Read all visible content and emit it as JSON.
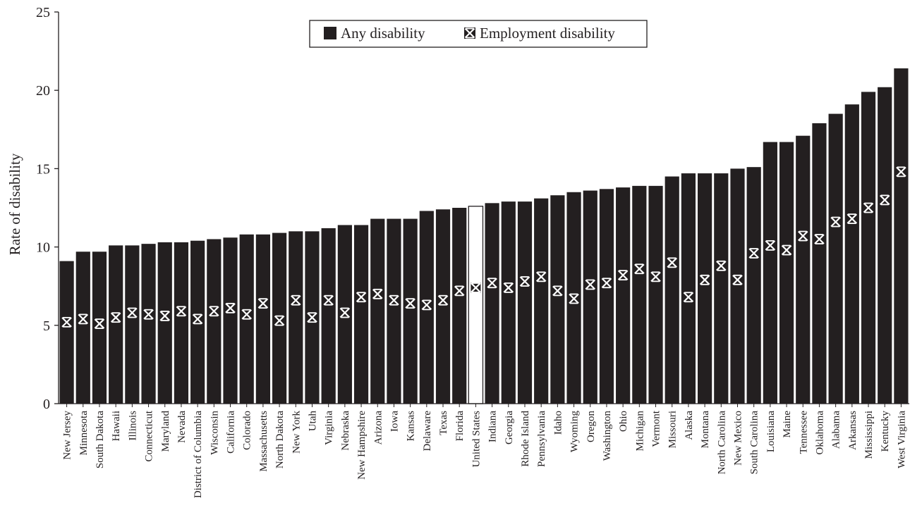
{
  "chart_data": {
    "type": "bar",
    "title": "",
    "xlabel": "",
    "ylabel": "Rate of disability",
    "ylim": [
      0,
      25
    ],
    "yticks": [
      "0",
      "5",
      "10",
      "15",
      "20",
      "25"
    ],
    "ytick_values": [
      0,
      5,
      10,
      15,
      20,
      25
    ],
    "grid": false,
    "legend_position": "top-center",
    "highlight_category": "United States",
    "colors": {
      "bar": "#231f20",
      "highlight_fill": "#ffffff",
      "marker": "#ffffff"
    },
    "categories": [
      "New Jersey",
      "Minnesota",
      "South Dakota",
      "Hawaii",
      "Illinois",
      "Connecticut",
      "Maryland",
      "Nevada",
      "District of Columbia",
      "Wisconsin",
      "California",
      "Colorado",
      "Massachusetts",
      "North Dakota",
      "New York",
      "Utah",
      "Virginia",
      "Nebraska",
      "New Hampshire",
      "Arizona",
      "Iowa",
      "Kansas",
      "Delaware",
      "Texas",
      "Florida",
      "United States",
      "Indiana",
      "Georgia",
      "Rhode Island",
      "Pennsylvania",
      "Idaho",
      "Wyoming",
      "Oregon",
      "Washington",
      "Ohio",
      "Michigan",
      "Vermont",
      "Missouri",
      "Alaska",
      "Montana",
      "North Carolina",
      "New Mexico",
      "South Carolina",
      "Louisiana",
      "Maine",
      "Tennessee",
      "Oklahoma",
      "Alabama",
      "Arkansas",
      "Mississippi",
      "Kentucky",
      "West Virginia"
    ],
    "series": [
      {
        "name": "Any disability",
        "kind": "bar",
        "values": [
          9.1,
          9.7,
          9.7,
          10.1,
          10.1,
          10.2,
          10.3,
          10.3,
          10.4,
          10.5,
          10.6,
          10.8,
          10.8,
          10.9,
          11.0,
          11.0,
          11.2,
          11.4,
          11.4,
          11.8,
          11.8,
          11.8,
          12.3,
          12.4,
          12.5,
          12.6,
          12.8,
          12.9,
          12.9,
          13.1,
          13.3,
          13.5,
          13.6,
          13.7,
          13.8,
          13.9,
          13.9,
          14.5,
          14.7,
          14.7,
          14.7,
          15.0,
          15.1,
          16.7,
          16.7,
          17.1,
          17.9,
          18.5,
          19.1,
          19.9,
          20.2,
          21.4
        ]
      },
      {
        "name": "Employment disability",
        "kind": "marker",
        "values": [
          5.2,
          5.4,
          5.1,
          5.5,
          5.8,
          5.7,
          5.6,
          5.9,
          5.4,
          5.9,
          6.1,
          5.7,
          6.4,
          5.3,
          6.6,
          5.5,
          6.6,
          5.8,
          6.8,
          7.0,
          6.6,
          6.4,
          6.3,
          6.6,
          7.2,
          7.4,
          7.7,
          7.4,
          7.8,
          8.1,
          7.2,
          6.7,
          7.6,
          7.7,
          8.2,
          8.6,
          8.1,
          9.0,
          6.8,
          7.9,
          8.8,
          7.9,
          9.6,
          10.1,
          9.8,
          10.7,
          10.5,
          11.6,
          11.8,
          12.5,
          13.0,
          14.8
        ]
      }
    ]
  }
}
